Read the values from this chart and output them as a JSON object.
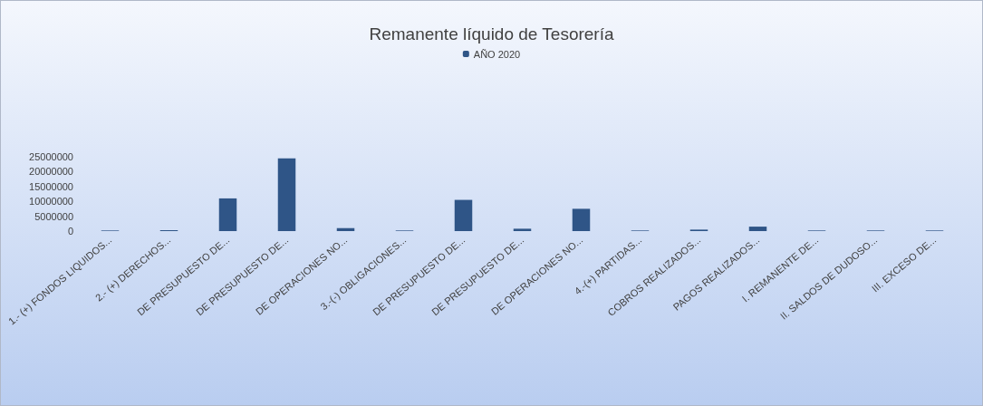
{
  "chart_data": {
    "type": "bar",
    "title": "Remanente líquido de Tesorería",
    "categories": [
      "1.- (+) FONDOS LIQUIDOS...",
      "2.- (+) DERECHOS...",
      "DE PRESUPUESTO DE...",
      "DE PRESUPUESTO DE...",
      "DE OPERACIONES NO...",
      "3.-(-) OBLIGACIONES...",
      "DE PRESUPUESTO DE...",
      "DE PRESUPUESTO DE...",
      "DE OPERACIONES NO...",
      "4.-(+) PARTIDAS...",
      "COBROS REALIZADOS...",
      "PAGOS REALIZADOS...",
      "I. REMANENTE DE...",
      "II. SALDOS DE DUDOSO...",
      "III. EXCESO DE..."
    ],
    "series": [
      {
        "name": "AÑO 2020",
        "color": "#2f5587",
        "values": [
          200000,
          300000,
          11000000,
          24500000,
          1000000,
          200000,
          10500000,
          800000,
          7500000,
          200000,
          500000,
          1500000,
          200000,
          200000,
          200000
        ]
      }
    ],
    "ylim": [
      0,
      25000000
    ],
    "yticks": [
      0,
      5000000,
      10000000,
      15000000,
      20000000,
      25000000
    ],
    "grid": false,
    "legend": "top"
  }
}
